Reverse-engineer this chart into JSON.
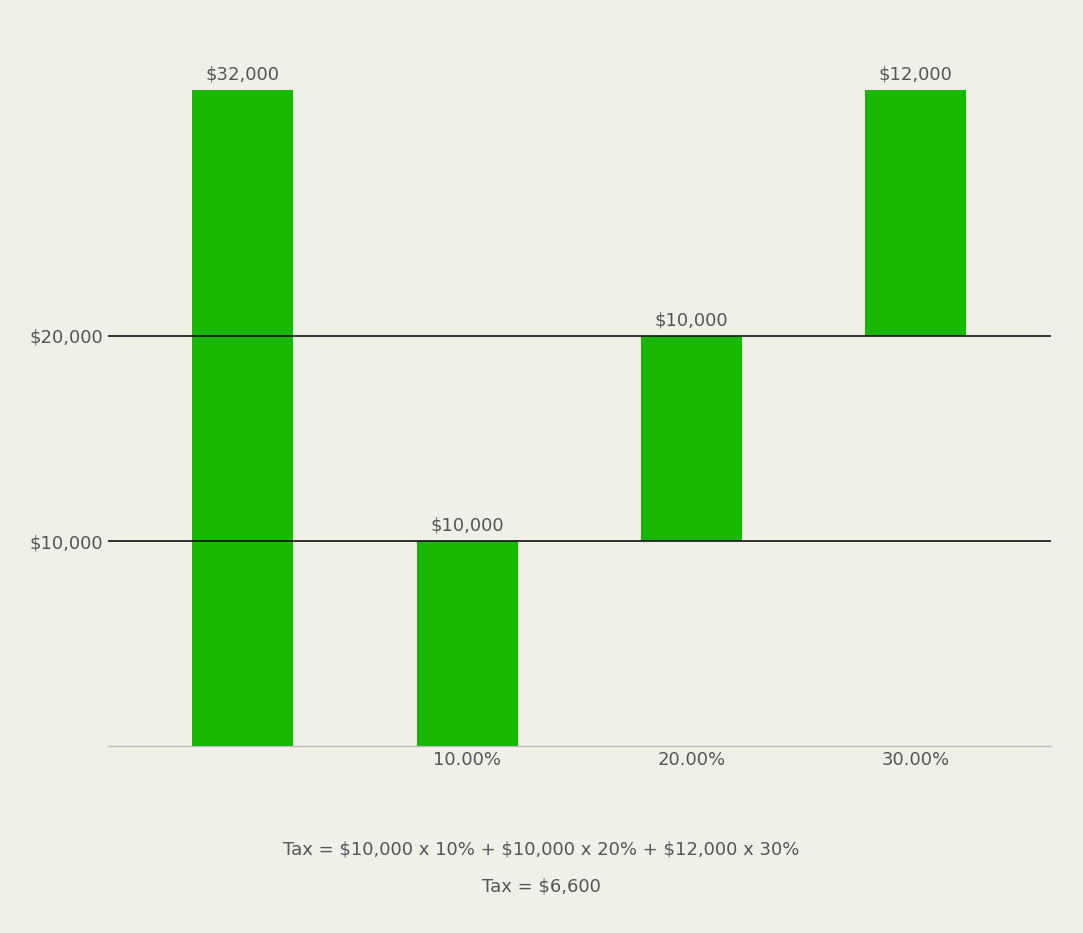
{
  "categories": [
    "",
    "10.00%",
    "20.00%",
    "30.00%"
  ],
  "bar_bottoms": [
    0,
    0,
    10000,
    20000
  ],
  "values": [
    32000,
    10000,
    10000,
    12000
  ],
  "bar_labels": [
    "$32,000",
    "$10,000",
    "$10,000",
    "$12,000"
  ],
  "bar_color": "#18b800",
  "background_color": "#f0efe8",
  "ytick_positions": [
    10000,
    20000
  ],
  "ytick_labels": [
    "$10,000",
    "$20,000"
  ],
  "ylim": [
    0,
    35000
  ],
  "annotation_line1": "Tax = $10,000 x 10% + $10,000 x 20% + $12,000 x 30%",
  "annotation_line2": "Tax = $6,600",
  "bar_label_fontsize": 13,
  "tick_label_fontsize": 13,
  "annotation_fontsize": 13,
  "bar_width": 0.45,
  "text_color": "#555555",
  "hline_color": "#111111",
  "bottom_spine_color": "#bbbbbb"
}
